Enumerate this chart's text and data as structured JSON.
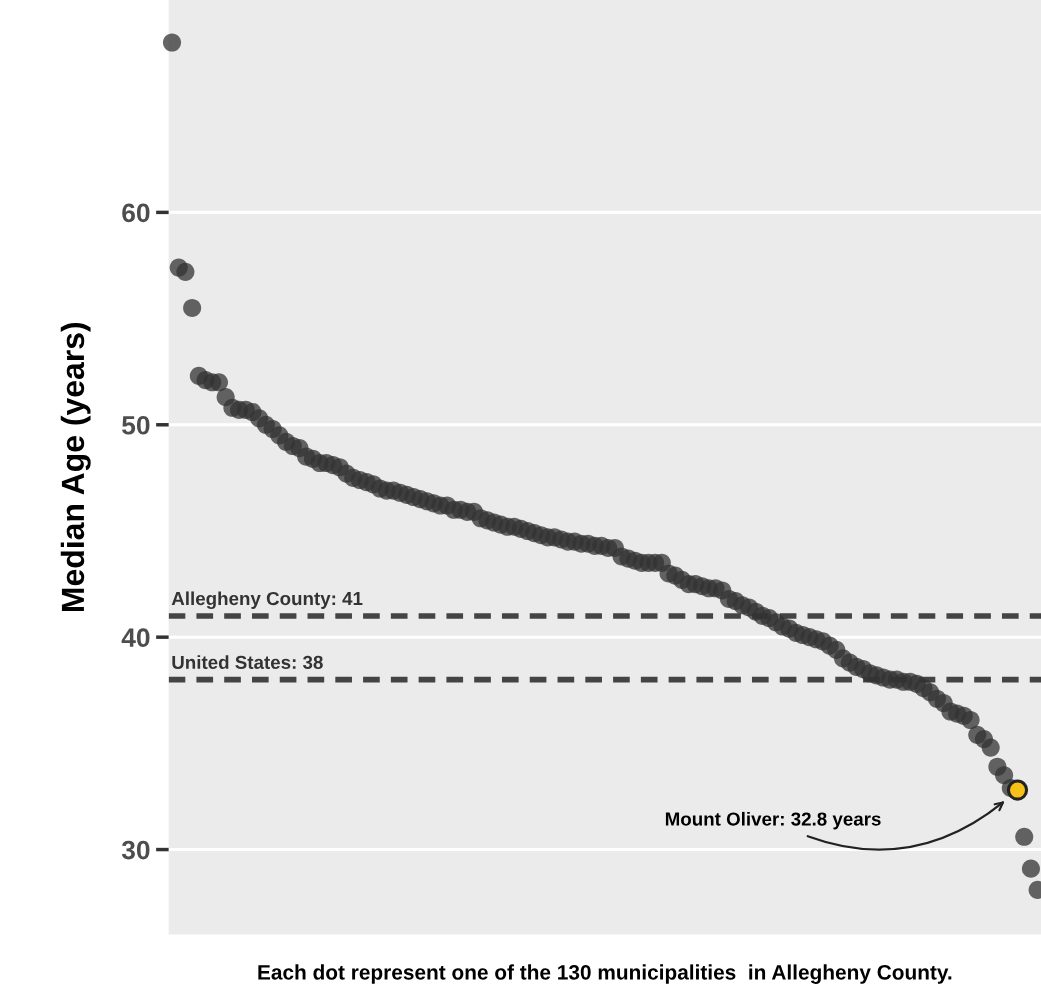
{
  "chart_data": {
    "type": "scatter",
    "xlabel": "Each dot represent one of the 130 municipalities  in Allegheny County.",
    "ylabel": "Median Age (years)",
    "categories": [
      null,
      null,
      null,
      null,
      null,
      null,
      null,
      null,
      null,
      null,
      null,
      null,
      null,
      null,
      null,
      null,
      null,
      null,
      null,
      null,
      null,
      null,
      null,
      null,
      null,
      null,
      null,
      null,
      null,
      null,
      null,
      null,
      null,
      null,
      null,
      null,
      null,
      null,
      null,
      null,
      null,
      null,
      null,
      null,
      null,
      null,
      null,
      null,
      null,
      null,
      null,
      null,
      null,
      null,
      null,
      null,
      null,
      null,
      null,
      null,
      null,
      null,
      null,
      null,
      null,
      null,
      null,
      null,
      null,
      null,
      null,
      null,
      null,
      null,
      null,
      null,
      null,
      null,
      null,
      null,
      null,
      null,
      null,
      null,
      null,
      null,
      null,
      null,
      null,
      null,
      null,
      null,
      null,
      null,
      null,
      null,
      null,
      null,
      null,
      null,
      null,
      null,
      null,
      null,
      null,
      null,
      null,
      null,
      null,
      null,
      null,
      null,
      null,
      null,
      null,
      null,
      null,
      null,
      null,
      null,
      null,
      null,
      null,
      null,
      null,
      null,
      null,
      null,
      null,
      null
    ],
    "values": [
      68.0,
      57.4,
      57.2,
      55.5,
      52.3,
      52.1,
      52.0,
      52.0,
      51.3,
      50.8,
      50.7,
      50.7,
      50.6,
      50.3,
      50.0,
      49.8,
      49.5,
      49.2,
      49.0,
      48.9,
      48.5,
      48.4,
      48.2,
      48.2,
      48.1,
      48.0,
      47.7,
      47.5,
      47.4,
      47.3,
      47.2,
      47.0,
      46.9,
      46.9,
      46.8,
      46.7,
      46.6,
      46.5,
      46.4,
      46.3,
      46.2,
      46.2,
      46.0,
      46.0,
      45.9,
      45.9,
      45.6,
      45.5,
      45.4,
      45.3,
      45.2,
      45.2,
      45.1,
      45.0,
      44.9,
      44.8,
      44.7,
      44.7,
      44.6,
      44.5,
      44.5,
      44.4,
      44.4,
      44.3,
      44.3,
      44.2,
      44.2,
      43.8,
      43.7,
      43.6,
      43.5,
      43.5,
      43.5,
      43.5,
      43.0,
      42.9,
      42.7,
      42.5,
      42.5,
      42.4,
      42.3,
      42.3,
      42.2,
      41.8,
      41.7,
      41.5,
      41.4,
      41.2,
      41.0,
      40.9,
      40.7,
      40.5,
      40.4,
      40.2,
      40.1,
      40.0,
      39.9,
      39.8,
      39.6,
      39.4,
      39.0,
      38.8,
      38.6,
      38.5,
      38.3,
      38.2,
      38.1,
      38.0,
      38.0,
      37.9,
      37.9,
      37.8,
      37.6,
      37.4,
      37.1,
      36.9,
      36.5,
      36.4,
      36.3,
      36.1,
      35.4,
      35.2,
      34.8,
      33.9,
      33.5,
      32.9,
      32.8,
      30.6,
      29.1,
      28.1
    ],
    "colors": [
      "#333333",
      "#333333",
      "#333333",
      "#333333",
      "#333333",
      "#333333",
      "#333333",
      "#333333",
      "#333333",
      "#333333",
      "#333333",
      "#333333",
      "#333333",
      "#333333",
      "#333333",
      "#333333",
      "#333333",
      "#333333",
      "#333333",
      "#333333",
      "#333333",
      "#333333",
      "#333333",
      "#333333",
      "#333333",
      "#333333",
      "#333333",
      "#333333",
      "#333333",
      "#333333",
      "#333333",
      "#333333",
      "#333333",
      "#333333",
      "#333333",
      "#333333",
      "#333333",
      "#333333",
      "#333333",
      "#333333",
      "#333333",
      "#333333",
      "#333333",
      "#333333",
      "#333333",
      "#333333",
      "#333333",
      "#333333",
      "#333333",
      "#333333",
      "#333333",
      "#333333",
      "#333333",
      "#333333",
      "#333333",
      "#333333",
      "#333333",
      "#333333",
      "#333333",
      "#333333",
      "#333333",
      "#333333",
      "#333333",
      "#333333",
      "#333333",
      "#333333",
      "#333333",
      "#333333",
      "#333333",
      "#333333",
      "#333333",
      "#333333",
      "#333333",
      "#333333",
      "#333333",
      "#333333",
      "#333333",
      "#333333",
      "#333333",
      "#333333",
      "#333333",
      "#333333",
      "#333333",
      "#333333",
      "#333333",
      "#333333",
      "#333333",
      "#333333",
      "#333333",
      "#333333",
      "#333333",
      "#333333",
      "#333333",
      "#333333",
      "#333333",
      "#333333",
      "#333333",
      "#333333",
      "#333333",
      "#333333",
      "#333333",
      "#333333",
      "#333333",
      "#333333",
      "#333333",
      "#333333",
      "#333333",
      "#333333",
      "#333333",
      "#333333",
      "#333333",
      "#333333",
      "#333333",
      "#333333",
      "#333333",
      "#333333",
      "#333333",
      "#333333",
      "#333333",
      "#333333",
      "#333333",
      "#333333",
      "#333333",
      "#333333",
      "#333333",
      "#333333",
      "#f5c018",
      "#333333",
      "#333333",
      "#333333"
    ],
    "ylim": [
      26,
      70
    ],
    "yticks": [
      30,
      40,
      50,
      60
    ],
    "tick_labels": "y",
    "grid": "y",
    "marker": "circle",
    "ref_lines": [
      {
        "axis": "y",
        "value": 41,
        "label": "Allegheny County: 41",
        "color": "#444444",
        "line_style": "dashed"
      },
      {
        "axis": "y",
        "value": 38,
        "label": "United States: 38",
        "color": "#444444",
        "line_style": "dashed"
      }
    ],
    "annotations": [
      "Mount Oliver: 32.8 years"
    ]
  }
}
